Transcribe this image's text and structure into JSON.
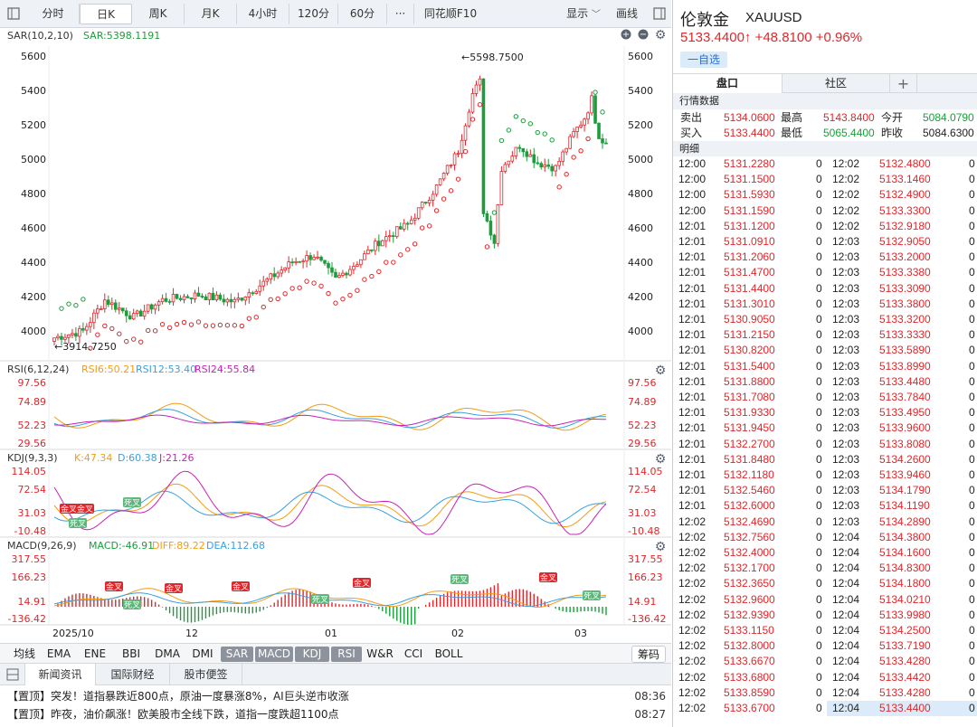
{
  "toolbar": {
    "periods": [
      "分时",
      "日K",
      "周K",
      "月K",
      "4小时",
      "120分",
      "60分"
    ],
    "active_period": "日K",
    "more": "···",
    "f10": "同花顺F10",
    "display": "显示",
    "draw": "画线"
  },
  "chart": {
    "main": {
      "indicator": "SAR(10,2,10)",
      "sar_value": "SAR:5398.1191",
      "y_ticks": [
        "5600",
        "5400",
        "5200",
        "5000",
        "4800",
        "4600",
        "4400",
        "4200",
        "4000"
      ],
      "high_annotation": "5598.7500",
      "low_annotation": "3914.7250"
    },
    "rsi": {
      "name": "RSI(6,12,24)",
      "rsi6": "RSI6:50.21",
      "rsi12": "RSI12:53.40",
      "rsi24": "RSI24:55.84",
      "y_ticks": [
        "97.56",
        "74.89",
        "52.23",
        "29.56"
      ]
    },
    "kdj": {
      "name": "KDJ(9,3,3)",
      "k": "K:47.34",
      "d": "D:60.38",
      "j": "J:21.26",
      "y_ticks": [
        "114.05",
        "72.54",
        "31.03",
        "-10.48"
      ],
      "signals": [
        "金叉",
        "金叉",
        "死叉",
        "死叉"
      ]
    },
    "macd": {
      "name": "MACD(9,26,9)",
      "macd": "MACD:-46.91",
      "diff": "DIFF:89.22",
      "dea": "DEA:112.68",
      "y_ticks": [
        "317.55",
        "166.23",
        "14.91",
        "-136.42"
      ],
      "golden": "金叉",
      "dead": "死叉"
    },
    "x_ticks": [
      "2025/10",
      "12",
      "01",
      "02",
      "03"
    ],
    "colors": {
      "up": "#e0272b",
      "down": "#1a9e3b",
      "sar_up": "#e0272b",
      "sar_down": "#1a9e3b",
      "orange": "#f39c12",
      "blue": "#3aa0e0",
      "magenta": "#c822b6"
    }
  },
  "indicators": {
    "tabs": [
      "均线",
      "EMA",
      "ENE",
      "BBI",
      "DMA",
      "DMI",
      "SAR",
      "MACD",
      "KDJ",
      "RSI",
      "W&R",
      "CCI",
      "BOLL"
    ],
    "active": [
      "SAR",
      "MACD",
      "KDJ",
      "RSI"
    ],
    "chips": "筹码"
  },
  "news": {
    "tabs": [
      "新闻资讯",
      "国际财经",
      "股市便签"
    ],
    "items": [
      {
        "tag": "【置顶】",
        "text": "突发！道指暴跌近800点，原油一度暴涨8%，AI巨头逆市收涨",
        "time": "08:36"
      },
      {
        "tag": "【置顶】",
        "text": "昨夜，油价飙涨！欧美股市全线下跌，道指一度跌超1100点",
        "time": "08:27"
      }
    ]
  },
  "quote": {
    "name": "伦敦金",
    "code": "XAUUSD",
    "price": "5133.4400↑",
    "change": "+48.8100",
    "change_pct": "+0.96%",
    "watch": "一自选",
    "tabs": [
      "盘口",
      "社区"
    ],
    "add": "+",
    "section_market": "行情数据",
    "sell_label": "卖出",
    "sell": "5134.0600",
    "high_label": "最高",
    "high": "5143.8400",
    "open_label": "今开",
    "open": "5084.0790",
    "buy_label": "买入",
    "buy": "5133.4400",
    "low_label": "最低",
    "low": "5065.4400",
    "prev_label": "昨收",
    "prev": "5084.6300",
    "section_detail": "明细"
  },
  "ticks_left": [
    [
      "12:00",
      "5131.2280",
      "0"
    ],
    [
      "12:00",
      "5131.1500",
      "0"
    ],
    [
      "12:00",
      "5131.5930",
      "0"
    ],
    [
      "12:00",
      "5131.1590",
      "0"
    ],
    [
      "12:01",
      "5131.1200",
      "0"
    ],
    [
      "12:01",
      "5131.0910",
      "0"
    ],
    [
      "12:01",
      "5131.2060",
      "0"
    ],
    [
      "12:01",
      "5131.4700",
      "0"
    ],
    [
      "12:01",
      "5131.4400",
      "0"
    ],
    [
      "12:01",
      "5131.3010",
      "0"
    ],
    [
      "12:01",
      "5130.9050",
      "0"
    ],
    [
      "12:01",
      "5131.2150",
      "0"
    ],
    [
      "12:01",
      "5130.8200",
      "0"
    ],
    [
      "12:01",
      "5131.5400",
      "0"
    ],
    [
      "12:01",
      "5131.8800",
      "0"
    ],
    [
      "12:01",
      "5131.7080",
      "0"
    ],
    [
      "12:01",
      "5131.9330",
      "0"
    ],
    [
      "12:01",
      "5131.9450",
      "0"
    ],
    [
      "12:01",
      "5132.2700",
      "0"
    ],
    [
      "12:01",
      "5131.8480",
      "0"
    ],
    [
      "12:01",
      "5132.1180",
      "0"
    ],
    [
      "12:01",
      "5132.5460",
      "0"
    ],
    [
      "12:01",
      "5132.6000",
      "0"
    ],
    [
      "12:02",
      "5132.4690",
      "0"
    ],
    [
      "12:02",
      "5132.7560",
      "0"
    ],
    [
      "12:02",
      "5132.4000",
      "0"
    ],
    [
      "12:02",
      "5132.1700",
      "0"
    ],
    [
      "12:02",
      "5132.3650",
      "0"
    ],
    [
      "12:02",
      "5132.9600",
      "0"
    ],
    [
      "12:02",
      "5132.9390",
      "0"
    ],
    [
      "12:02",
      "5133.1150",
      "0"
    ],
    [
      "12:02",
      "5132.8000",
      "0"
    ],
    [
      "12:02",
      "5133.6670",
      "0"
    ],
    [
      "12:02",
      "5133.6800",
      "0"
    ],
    [
      "12:02",
      "5133.8590",
      "0"
    ],
    [
      "12:02",
      "5133.6700",
      "0"
    ]
  ],
  "ticks_right": [
    [
      "12:02",
      "5132.4800",
      "0"
    ],
    [
      "12:02",
      "5133.1460",
      "0"
    ],
    [
      "12:02",
      "5132.4900",
      "0"
    ],
    [
      "12:02",
      "5133.3300",
      "0"
    ],
    [
      "12:02",
      "5132.9180",
      "0"
    ],
    [
      "12:03",
      "5132.9050",
      "0"
    ],
    [
      "12:03",
      "5133.2000",
      "0"
    ],
    [
      "12:03",
      "5133.3380",
      "0"
    ],
    [
      "12:03",
      "5133.3090",
      "0"
    ],
    [
      "12:03",
      "5133.3800",
      "0"
    ],
    [
      "12:03",
      "5133.3200",
      "0"
    ],
    [
      "12:03",
      "5133.3330",
      "0"
    ],
    [
      "12:03",
      "5133.5890",
      "0"
    ],
    [
      "12:03",
      "5133.8990",
      "0"
    ],
    [
      "12:03",
      "5133.4480",
      "0"
    ],
    [
      "12:03",
      "5133.7840",
      "0"
    ],
    [
      "12:03",
      "5133.4950",
      "0"
    ],
    [
      "12:03",
      "5133.9600",
      "0"
    ],
    [
      "12:03",
      "5133.8080",
      "0"
    ],
    [
      "12:03",
      "5134.2600",
      "0"
    ],
    [
      "12:03",
      "5133.9460",
      "0"
    ],
    [
      "12:03",
      "5134.1790",
      "0"
    ],
    [
      "12:03",
      "5134.1190",
      "0"
    ],
    [
      "12:03",
      "5134.2890",
      "0"
    ],
    [
      "12:04",
      "5134.3800",
      "0"
    ],
    [
      "12:04",
      "5134.1600",
      "0"
    ],
    [
      "12:04",
      "5134.8300",
      "0"
    ],
    [
      "12:04",
      "5134.1800",
      "0"
    ],
    [
      "12:04",
      "5134.0210",
      "0"
    ],
    [
      "12:04",
      "5133.9980",
      "0"
    ],
    [
      "12:04",
      "5134.2500",
      "0"
    ],
    [
      "12:04",
      "5133.7190",
      "0"
    ],
    [
      "12:04",
      "5133.4280",
      "0"
    ],
    [
      "12:04",
      "5133.4420",
      "0"
    ],
    [
      "12:04",
      "5133.4280",
      "0"
    ],
    [
      "12:04",
      "5133.4400",
      "0"
    ]
  ]
}
